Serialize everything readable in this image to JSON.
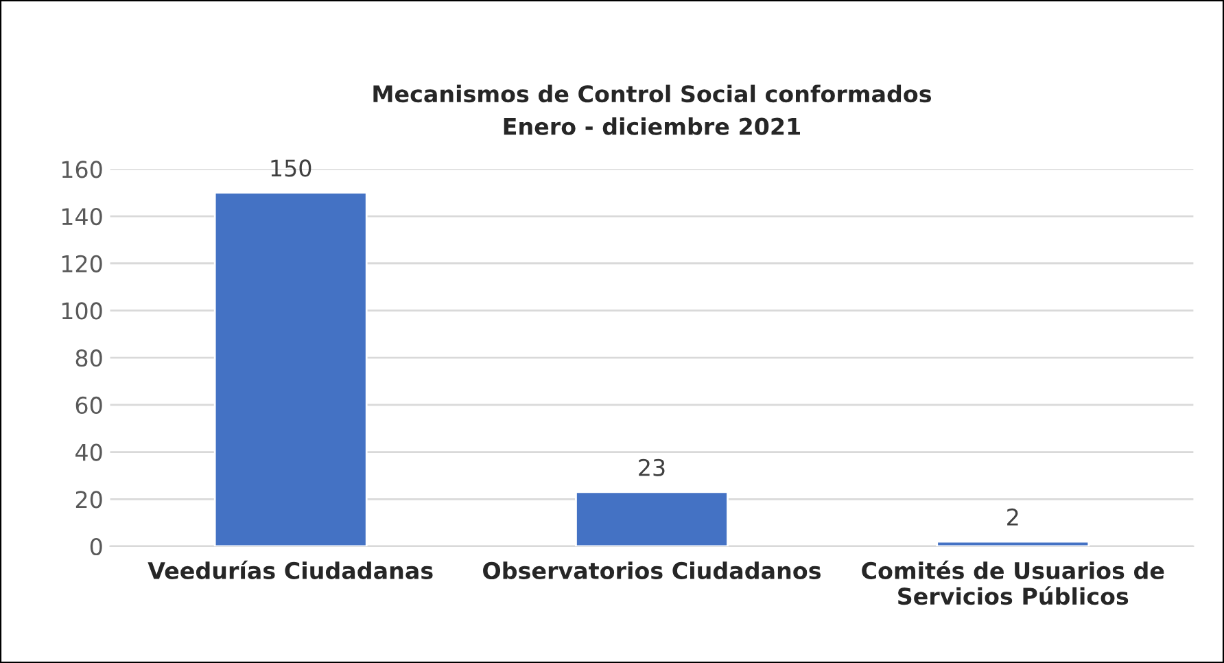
{
  "chart_data": {
    "type": "bar",
    "title": "Mecanismos de Control Social conformados\nEnero - diciembre 2021",
    "categories": [
      "Veedurías Ciudadanas",
      "Observatorios Ciudadanos",
      "Comités de Usuarios de\nServicios Públicos"
    ],
    "values": [
      150,
      23,
      2
    ],
    "color": "#4472c4",
    "ylim": [
      0,
      160
    ],
    "yticks": [
      0,
      20,
      40,
      60,
      80,
      100,
      120,
      140,
      160
    ],
    "grid": "y",
    "data_labels": true
  }
}
